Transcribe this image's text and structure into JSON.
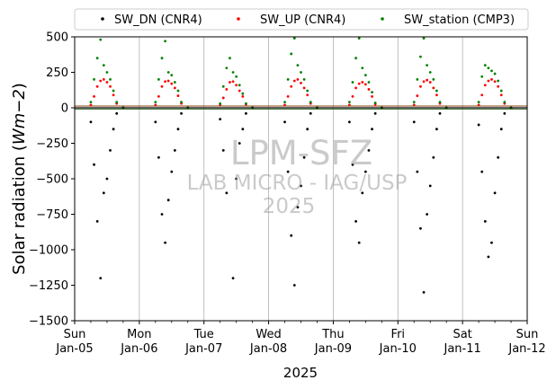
{
  "chart_data": {
    "type": "scatter",
    "xlabel": "2025",
    "ylabel_main": "Solar radiation (",
    "ylabel_unit": "Wm",
    "ylabel_exp": "−2",
    "ylabel_close": ")",
    "ylim": [
      -1500,
      500
    ],
    "xlim": [
      "2025-01-05",
      "2025-01-12"
    ],
    "grid": "vertical",
    "legend_position": "top",
    "y_ticks": [
      {
        "value": 500,
        "label": "500"
      },
      {
        "value": 250,
        "label": "250"
      },
      {
        "value": 0,
        "label": "0"
      },
      {
        "value": -250,
        "label": "−250"
      },
      {
        "value": -500,
        "label": "−500"
      },
      {
        "value": -750,
        "label": "−750"
      },
      {
        "value": -1000,
        "label": "−1000"
      },
      {
        "value": -1250,
        "label": "−1250"
      },
      {
        "value": -1500,
        "label": "−1500"
      }
    ],
    "x_ticks": [
      {
        "day": 0,
        "line1": "Sun",
        "line2": "Jan-05"
      },
      {
        "day": 1,
        "line1": "Mon",
        "line2": "Jan-06"
      },
      {
        "day": 2,
        "line1": "Tue",
        "line2": "Jan-07"
      },
      {
        "day": 3,
        "line1": "Wed",
        "line2": "Jan-08"
      },
      {
        "day": 4,
        "line1": "Thu",
        "line2": "Jan-09"
      },
      {
        "day": 5,
        "line1": "Fri",
        "line2": "Jan-10"
      },
      {
        "day": 6,
        "line1": "Sat",
        "line2": "Jan-11"
      },
      {
        "day": 7,
        "line1": "Sun",
        "line2": "Jan-12"
      }
    ],
    "series": [
      {
        "name": "SW_DN (CNR4)",
        "color": "#000000",
        "values": [
          [
            0.25,
            -100
          ],
          [
            0.3,
            -400
          ],
          [
            0.35,
            -800
          ],
          [
            0.4,
            -1200
          ],
          [
            0.45,
            -600
          ],
          [
            0.5,
            -500
          ],
          [
            0.55,
            -300
          ],
          [
            0.6,
            -150
          ],
          [
            0.65,
            -40
          ],
          [
            0.75,
            0
          ],
          [
            1.25,
            -100
          ],
          [
            1.3,
            -350
          ],
          [
            1.35,
            -750
          ],
          [
            1.4,
            -950
          ],
          [
            1.45,
            -650
          ],
          [
            1.5,
            -450
          ],
          [
            1.55,
            -300
          ],
          [
            1.6,
            -150
          ],
          [
            1.65,
            -40
          ],
          [
            1.75,
            0
          ],
          [
            2.25,
            -80
          ],
          [
            2.3,
            -300
          ],
          [
            2.35,
            -600
          ],
          [
            2.45,
            -1200
          ],
          [
            2.5,
            -500
          ],
          [
            2.55,
            -250
          ],
          [
            2.6,
            -150
          ],
          [
            2.65,
            -40
          ],
          [
            2.75,
            0
          ],
          [
            3.25,
            -100
          ],
          [
            3.3,
            -450
          ],
          [
            3.35,
            -900
          ],
          [
            3.4,
            -1250
          ],
          [
            3.45,
            -700
          ],
          [
            3.5,
            -550
          ],
          [
            3.55,
            -350
          ],
          [
            3.6,
            -150
          ],
          [
            3.65,
            -40
          ],
          [
            3.75,
            0
          ],
          [
            4.25,
            -100
          ],
          [
            4.3,
            -400
          ],
          [
            4.35,
            -800
          ],
          [
            4.4,
            -950
          ],
          [
            4.45,
            -600
          ],
          [
            4.5,
            -450
          ],
          [
            4.55,
            -300
          ],
          [
            4.6,
            -150
          ],
          [
            4.65,
            -40
          ],
          [
            4.75,
            0
          ],
          [
            5.25,
            -100
          ],
          [
            5.3,
            -450
          ],
          [
            5.35,
            -850
          ],
          [
            5.4,
            -1300
          ],
          [
            5.45,
            -750
          ],
          [
            5.5,
            -550
          ],
          [
            5.55,
            -350
          ],
          [
            5.6,
            -150
          ],
          [
            5.65,
            -40
          ],
          [
            5.75,
            0
          ],
          [
            6.25,
            -120
          ],
          [
            6.3,
            -450
          ],
          [
            6.35,
            -800
          ],
          [
            6.4,
            -1050
          ],
          [
            6.45,
            -950
          ],
          [
            6.5,
            -600
          ],
          [
            6.55,
            -350
          ],
          [
            6.6,
            -150
          ],
          [
            6.65,
            -40
          ],
          [
            6.75,
            0
          ]
        ]
      },
      {
        "name": "SW_UP (CNR4)",
        "color": "#ff0000",
        "values": [
          [
            0.25,
            20
          ],
          [
            0.3,
            80
          ],
          [
            0.35,
            150
          ],
          [
            0.4,
            190
          ],
          [
            0.45,
            200
          ],
          [
            0.5,
            180
          ],
          [
            0.55,
            150
          ],
          [
            0.6,
            90
          ],
          [
            0.65,
            30
          ],
          [
            0.75,
            0
          ],
          [
            1.25,
            20
          ],
          [
            1.3,
            80
          ],
          [
            1.35,
            150
          ],
          [
            1.4,
            185
          ],
          [
            1.45,
            190
          ],
          [
            1.5,
            170
          ],
          [
            1.55,
            140
          ],
          [
            1.6,
            85
          ],
          [
            1.65,
            30
          ],
          [
            1.75,
            0
          ],
          [
            2.25,
            20
          ],
          [
            2.3,
            70
          ],
          [
            2.35,
            130
          ],
          [
            2.4,
            180
          ],
          [
            2.45,
            185
          ],
          [
            2.5,
            160
          ],
          [
            2.55,
            120
          ],
          [
            2.6,
            80
          ],
          [
            2.65,
            25
          ],
          [
            2.75,
            0
          ],
          [
            3.25,
            20
          ],
          [
            3.3,
            80
          ],
          [
            3.35,
            150
          ],
          [
            3.4,
            190
          ],
          [
            3.45,
            200
          ],
          [
            3.5,
            175
          ],
          [
            3.55,
            140
          ],
          [
            3.6,
            90
          ],
          [
            3.65,
            30
          ],
          [
            3.75,
            0
          ],
          [
            4.25,
            20
          ],
          [
            4.3,
            80
          ],
          [
            4.35,
            140
          ],
          [
            4.4,
            170
          ],
          [
            4.45,
            180
          ],
          [
            4.5,
            165
          ],
          [
            4.55,
            130
          ],
          [
            4.6,
            80
          ],
          [
            4.65,
            25
          ],
          [
            4.75,
            0
          ],
          [
            5.25,
            20
          ],
          [
            5.3,
            85
          ],
          [
            5.35,
            150
          ],
          [
            5.4,
            185
          ],
          [
            5.45,
            195
          ],
          [
            5.5,
            180
          ],
          [
            5.55,
            140
          ],
          [
            5.6,
            90
          ],
          [
            5.65,
            30
          ],
          [
            5.75,
            0
          ],
          [
            6.25,
            20
          ],
          [
            6.3,
            90
          ],
          [
            6.35,
            160
          ],
          [
            6.4,
            190
          ],
          [
            6.45,
            200
          ],
          [
            6.5,
            185
          ],
          [
            6.55,
            150
          ],
          [
            6.6,
            90
          ],
          [
            6.65,
            30
          ],
          [
            6.75,
            0
          ]
        ]
      },
      {
        "name": "SW_station (CMP3)",
        "color": "#008000",
        "values": [
          [
            0.25,
            40
          ],
          [
            0.3,
            200
          ],
          [
            0.35,
            350
          ],
          [
            0.4,
            480
          ],
          [
            0.45,
            300
          ],
          [
            0.5,
            250
          ],
          [
            0.55,
            200
          ],
          [
            0.6,
            120
          ],
          [
            0.65,
            40
          ],
          [
            0.75,
            0
          ],
          [
            1.25,
            40
          ],
          [
            1.3,
            200
          ],
          [
            1.35,
            350
          ],
          [
            1.4,
            470
          ],
          [
            1.45,
            250
          ],
          [
            1.5,
            230
          ],
          [
            1.55,
            180
          ],
          [
            1.6,
            120
          ],
          [
            1.65,
            40
          ],
          [
            1.75,
            0
          ],
          [
            2.25,
            30
          ],
          [
            2.3,
            150
          ],
          [
            2.35,
            280
          ],
          [
            2.4,
            350
          ],
          [
            2.45,
            250
          ],
          [
            2.5,
            220
          ],
          [
            2.55,
            160
          ],
          [
            2.6,
            100
          ],
          [
            2.65,
            30
          ],
          [
            2.75,
            0
          ],
          [
            3.25,
            40
          ],
          [
            3.3,
            200
          ],
          [
            3.35,
            380
          ],
          [
            3.4,
            490
          ],
          [
            3.45,
            300
          ],
          [
            3.5,
            250
          ],
          [
            3.55,
            200
          ],
          [
            3.6,
            120
          ],
          [
            3.65,
            40
          ],
          [
            3.75,
            0
          ],
          [
            4.25,
            40
          ],
          [
            4.3,
            180
          ],
          [
            4.35,
            350
          ],
          [
            4.4,
            490
          ],
          [
            4.45,
            280
          ],
          [
            4.5,
            230
          ],
          [
            4.55,
            180
          ],
          [
            4.6,
            110
          ],
          [
            4.65,
            35
          ],
          [
            4.75,
            0
          ],
          [
            5.25,
            40
          ],
          [
            5.3,
            200
          ],
          [
            5.35,
            360
          ],
          [
            5.4,
            490
          ],
          [
            5.45,
            300
          ],
          [
            5.5,
            250
          ],
          [
            5.55,
            200
          ],
          [
            5.6,
            120
          ],
          [
            5.65,
            40
          ],
          [
            5.75,
            0
          ],
          [
            6.25,
            40
          ],
          [
            6.3,
            220
          ],
          [
            6.35,
            300
          ],
          [
            6.4,
            280
          ],
          [
            6.45,
            260
          ],
          [
            6.5,
            240
          ],
          [
            6.55,
            190
          ],
          [
            6.6,
            120
          ],
          [
            6.65,
            40
          ],
          [
            6.75,
            0
          ]
        ]
      }
    ]
  },
  "watermark": {
    "line1": "LPM-SFZ",
    "line2": "LAB MICRO - IAG/USP",
    "line3": "2025"
  }
}
